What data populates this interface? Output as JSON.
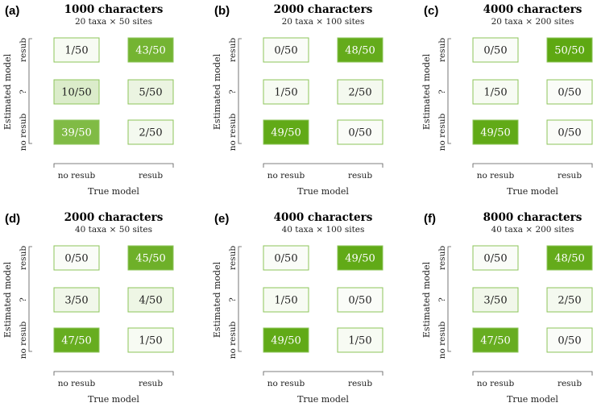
{
  "chart_data": [
    {
      "type": "heatmap",
      "panel": "(a)",
      "title": "1000 characters",
      "subtitle": "20 taxa × 50 sites",
      "xlabel": "True model",
      "ylabel": "Estimated model",
      "x_categories": [
        "no resub",
        "resub"
      ],
      "y_categories": [
        "resub",
        "?",
        "no resub"
      ],
      "cells": [
        [
          "1/50",
          "43/50"
        ],
        [
          "10/50",
          "5/50"
        ],
        [
          "39/50",
          "2/50"
        ]
      ],
      "values": [
        [
          1,
          43
        ],
        [
          10,
          5
        ],
        [
          39,
          2
        ]
      ],
      "total": 50
    },
    {
      "type": "heatmap",
      "panel": "(b)",
      "title": "2000 characters",
      "subtitle": "20 taxa × 100 sites",
      "xlabel": "True model",
      "ylabel": "Estimated model",
      "x_categories": [
        "no resub",
        "resub"
      ],
      "y_categories": [
        "resub",
        "?",
        "no resub"
      ],
      "cells": [
        [
          "0/50",
          "48/50"
        ],
        [
          "1/50",
          "2/50"
        ],
        [
          "49/50",
          "0/50"
        ]
      ],
      "values": [
        [
          0,
          48
        ],
        [
          1,
          2
        ],
        [
          49,
          0
        ]
      ],
      "total": 50
    },
    {
      "type": "heatmap",
      "panel": "(c)",
      "title": "4000 characters",
      "subtitle": "20 taxa × 200 sites",
      "xlabel": "True model",
      "ylabel": "Estimated model",
      "x_categories": [
        "no resub",
        "resub"
      ],
      "y_categories": [
        "resub",
        "?",
        "no resub"
      ],
      "cells": [
        [
          "0/50",
          "50/50"
        ],
        [
          "1/50",
          "0/50"
        ],
        [
          "49/50",
          "0/50"
        ]
      ],
      "values": [
        [
          0,
          50
        ],
        [
          1,
          0
        ],
        [
          49,
          0
        ]
      ],
      "total": 50
    },
    {
      "type": "heatmap",
      "panel": "(d)",
      "title": "2000 characters",
      "subtitle": "40 taxa × 50 sites",
      "xlabel": "True model",
      "ylabel": "Estimated model",
      "x_categories": [
        "no resub",
        "resub"
      ],
      "y_categories": [
        "resub",
        "?",
        "no resub"
      ],
      "cells": [
        [
          "0/50",
          "45/50"
        ],
        [
          "3/50",
          "4/50"
        ],
        [
          "47/50",
          "1/50"
        ]
      ],
      "values": [
        [
          0,
          45
        ],
        [
          3,
          4
        ],
        [
          47,
          1
        ]
      ],
      "total": 50
    },
    {
      "type": "heatmap",
      "panel": "(e)",
      "title": "4000 characters",
      "subtitle": "40 taxa × 100 sites",
      "xlabel": "True model",
      "ylabel": "Estimated model",
      "x_categories": [
        "no resub",
        "resub"
      ],
      "y_categories": [
        "resub",
        "?",
        "no resub"
      ],
      "cells": [
        [
          "0/50",
          "49/50"
        ],
        [
          "1/50",
          "0/50"
        ],
        [
          "49/50",
          "1/50"
        ]
      ],
      "values": [
        [
          0,
          49
        ],
        [
          1,
          0
        ],
        [
          49,
          1
        ]
      ],
      "total": 50
    },
    {
      "type": "heatmap",
      "panel": "(f)",
      "title": "8000 characters",
      "subtitle": "40 taxa × 200 sites",
      "xlabel": "True model",
      "ylabel": "Estimated model",
      "x_categories": [
        "no resub",
        "resub"
      ],
      "y_categories": [
        "resub",
        "?",
        "no resub"
      ],
      "cells": [
        [
          "0/50",
          "48/50"
        ],
        [
          "3/50",
          "2/50"
        ],
        [
          "47/50",
          "0/50"
        ]
      ],
      "values": [
        [
          0,
          48
        ],
        [
          3,
          2
        ],
        [
          47,
          0
        ]
      ],
      "total": 50
    }
  ],
  "colors": {
    "scale_low": "#ffffff",
    "scale_high": "#5ea812",
    "border": "#8cc45a",
    "text_dark": "#222222",
    "text_light": "#ffffff"
  }
}
